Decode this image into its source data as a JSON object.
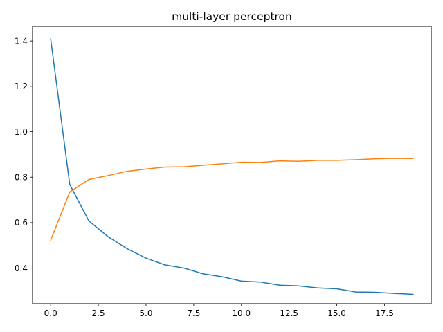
{
  "chart_data": {
    "type": "line",
    "title": "multi-layer perceptron",
    "xlabel": "",
    "ylabel": "",
    "xlim": [
      -0.95,
      19.95
    ],
    "ylim": [
      0.2437,
      1.4643
    ],
    "xticks": [
      0.0,
      2.5,
      5.0,
      7.5,
      10.0,
      12.5,
      15.0,
      17.5
    ],
    "xtick_labels": [
      "0.0",
      "2.5",
      "5.0",
      "7.5",
      "10.0",
      "12.5",
      "15.0",
      "17.5"
    ],
    "yticks": [
      0.4,
      0.6,
      0.8,
      1.0,
      1.2,
      1.4
    ],
    "ytick_labels": [
      "0.4",
      "0.6",
      "0.8",
      "1.0",
      "1.2",
      "1.4"
    ],
    "grid": false,
    "legend": "none",
    "x": [
      0,
      1,
      2,
      3,
      4,
      5,
      6,
      7,
      8,
      9,
      10,
      11,
      12,
      13,
      14,
      15,
      16,
      17,
      18,
      19
    ],
    "series": [
      {
        "name": "series-1",
        "color": "#1f77b4",
        "values": [
          1.409,
          0.768,
          0.608,
          0.539,
          0.486,
          0.444,
          0.414,
          0.4,
          0.375,
          0.362,
          0.343,
          0.339,
          0.325,
          0.322,
          0.313,
          0.309,
          0.295,
          0.294,
          0.289,
          0.285
        ]
      },
      {
        "name": "series-2",
        "color": "#ff7f0e",
        "values": [
          0.523,
          0.735,
          0.79,
          0.807,
          0.826,
          0.836,
          0.845,
          0.846,
          0.853,
          0.859,
          0.866,
          0.865,
          0.872,
          0.87,
          0.874,
          0.874,
          0.877,
          0.881,
          0.883,
          0.882
        ]
      }
    ]
  }
}
